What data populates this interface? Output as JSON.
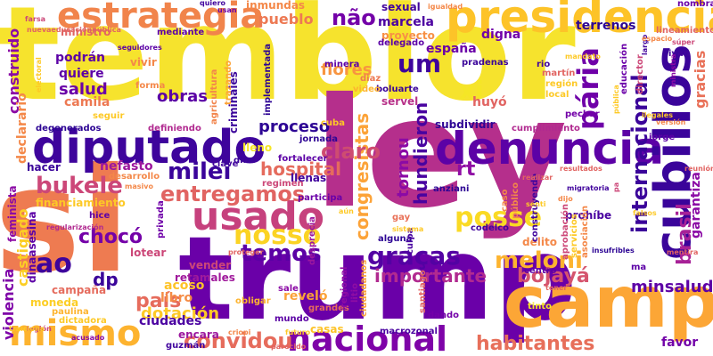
{
  "words": [
    {
      "text": "temblor",
      "color": "#f6e32d"
    },
    {
      "text": "ley",
      "color": "#b52f8c"
    },
    {
      "text": "trump",
      "color": "#6a00a8"
    },
    {
      "text": "si",
      "color": "#ee7b51"
    },
    {
      "text": "campo",
      "color": "#fca636"
    },
    {
      "text": "denuncia",
      "color": "#5c01a6"
    },
    {
      "text": "diputado",
      "color": "#3e049c"
    },
    {
      "text": "presidencial",
      "color": "#fdc328"
    },
    {
      "text": "estrategia",
      "color": "#f1844b"
    },
    {
      "text": "usado",
      "color": "#c6417d"
    },
    {
      "text": "cubillos",
      "color": "#3a049a"
    },
    {
      "text": "nacional",
      "color": "#7e03a8"
    },
    {
      "text": "mismo",
      "color": "#fdb32f"
    },
    {
      "text": "internacional",
      "color": "#3b049a"
    },
    {
      "text": "pária",
      "color": "#6f00a8"
    },
    {
      "text": "nosso",
      "color": "#fbd324"
    },
    {
      "text": "posse",
      "color": "#fada24"
    },
    {
      "text": "meloni",
      "color": "#fdb42f"
    },
    {
      "text": "graças",
      "color": "#5302a3"
    },
    {
      "text": "habitantes",
      "color": "#e76f5a"
    },
    {
      "text": "convidou",
      "color": "#e66c5c"
    },
    {
      "text": "bukele",
      "color": "#cc4778"
    },
    {
      "text": "milei",
      "color": "#3a049a"
    },
    {
      "text": "entregamos",
      "color": "#e16462"
    },
    {
      "text": "temos",
      "color": "#5b01a5"
    },
    {
      "text": "ao",
      "color": "#3e049c"
    },
    {
      "text": "país",
      "color": "#e66c5c"
    },
    {
      "text": "um",
      "color": "#3e049c"
    },
    {
      "text": "xi",
      "color": "#f5e626"
    },
    {
      "text": "não",
      "color": "#7301a8"
    },
    {
      "text": "brasil",
      "color": "#a72197"
    },
    {
      "text": "bojayá",
      "color": "#d5546e"
    },
    {
      "text": "congresistas",
      "color": "#fca338"
    },
    {
      "text": "chocó",
      "color": "#7401a8"
    },
    {
      "text": "claro",
      "color": "#ce4c71"
    },
    {
      "text": "pueblo",
      "color": "#ed7953"
    },
    {
      "text": "salud",
      "color": "#6a00a8"
    },
    {
      "text": "obras",
      "color": "#5b01a5"
    },
    {
      "text": "minsalud",
      "color": "#5d01a6"
    },
    {
      "text": "importante",
      "color": "#b12a90"
    },
    {
      "text": "rt",
      "color": "#8f0da4"
    },
    {
      "text": "hundieron",
      "color": "#4903a0"
    },
    {
      "text": "hospital",
      "color": "#e56b5d"
    },
    {
      "text": "dotación",
      "color": "#fdc926"
    },
    {
      "text": "proceso",
      "color": "#2d0594"
    },
    {
      "text": "tornou",
      "color": "#8b0aa5"
    },
    {
      "text": "dp",
      "color": "#3a049a"
    },
    {
      "text": "construido",
      "color": "#8b0aa5"
    },
    {
      "text": "violencia",
      "color": "#7e03a8"
    },
    {
      "text": "castigado",
      "color": "#fcce25"
    },
    {
      "text": "flores",
      "color": "#f89540"
    },
    {
      "text": "gracias",
      "color": "#e97158"
    },
    {
      "text": "garantiza",
      "color": "#8b0aa5"
    },
    {
      "text": "inmundas",
      "color": "#f48849"
    },
    {
      "text": "libro",
      "color": "#f58c46"
    },
    {
      "text": "marcela",
      "color": "#4c02a1"
    },
    {
      "text": "españa",
      "color": "#6a00a8"
    },
    {
      "text": "ciudades",
      "color": "#4b03a1"
    },
    {
      "text": "acoso",
      "color": "#fdc328"
    },
    {
      "text": "reveló",
      "color": "#fba238"
    },
    {
      "text": "favor",
      "color": "#7201a8"
    },
    {
      "text": "digna",
      "color": "#7201a8"
    },
    {
      "text": "sexual",
      "color": "#41049d"
    },
    {
      "text": "terrenos",
      "color": "#2c0594"
    },
    {
      "text": "proyecto",
      "color": "#f79044"
    },
    {
      "text": "ministro",
      "color": "#e16462"
    },
    {
      "text": "podrán",
      "color": "#5c01a6"
    },
    {
      "text": "quiere",
      "color": "#5c01a6"
    },
    {
      "text": "vivir",
      "color": "#f48849"
    },
    {
      "text": "camila",
      "color": "#ed7953"
    },
    {
      "text": "hacer",
      "color": "#3a049a"
    },
    {
      "text": "nefasto",
      "color": "#9c179e"
    },
    {
      "text": "financiamiento",
      "color": "#fdc926"
    },
    {
      "text": "moneda",
      "color": "#fcce25"
    },
    {
      "text": "campaña",
      "color": "#e56b5d"
    },
    {
      "text": "lotear",
      "color": "#cc4778"
    },
    {
      "text": "vender",
      "color": "#cc4778"
    },
    {
      "text": "retamales",
      "color": "#a01a9c"
    },
    {
      "text": "encara",
      "color": "#9c179e"
    },
    {
      "text": "subdividir",
      "color": "#2d0594"
    },
    {
      "text": "jornada",
      "color": "#2d0594"
    },
    {
      "text": "llenas",
      "color": "#41049d"
    },
    {
      "text": "delito",
      "color": "#f48849"
    },
    {
      "text": "prohíbe",
      "color": "#4903a0"
    },
    {
      "text": "codelco",
      "color": "#41049d"
    },
    {
      "text": "privada",
      "color": "#6f00a8"
    },
    {
      "text": "lleno",
      "color": "#f6e626"
    },
    {
      "text": "dina",
      "color": "#3a049a"
    },
    {
      "text": "dando",
      "color": "#7301a8"
    },
    {
      "text": "casas",
      "color": "#fdc328"
    },
    {
      "text": "grandes",
      "color": "#e56b5d"
    },
    {
      "text": "mundo",
      "color": "#5b01a5"
    },
    {
      "text": "obligar",
      "color": "#fdb42f"
    },
    {
      "text": "regional",
      "color": "#8f0da4"
    },
    {
      "text": "litio",
      "color": "#8f0da4"
    },
    {
      "text": "macrozonal",
      "color": "#4903a0"
    },
    {
      "text": "santiago",
      "color": "#e16462"
    },
    {
      "text": "centro",
      "color": "#5d01a6"
    },
    {
      "text": "tinto",
      "color": "#f5e626"
    },
    {
      "text": "pechar",
      "color": "#7301a8"
    },
    {
      "text": "servel",
      "color": "#b83289"
    },
    {
      "text": "huyó",
      "color": "#e16462"
    },
    {
      "text": "boluarte",
      "color": "#3a049a"
    },
    {
      "text": "pradenas",
      "color": "#3a049a"
    },
    {
      "text": "región",
      "color": "#fdc926"
    },
    {
      "text": "local",
      "color": "#fdc926"
    },
    {
      "text": "rio",
      "color": "#41049d"
    },
    {
      "text": "martín",
      "color": "#e16462"
    },
    {
      "text": "ivan",
      "color": "#41049d"
    },
    {
      "text": "jorge",
      "color": "#5c01a6"
    },
    {
      "text": "cumplimiento",
      "color": "#b12a90"
    },
    {
      "text": "delegado",
      "color": "#5c01a6"
    },
    {
      "text": "minera",
      "color": "#5c01a6"
    },
    {
      "text": "diaz",
      "color": "#ed7953"
    },
    {
      "text": "video",
      "color": "#fdb42f"
    },
    {
      "text": "criminales",
      "color": "#3a049a"
    },
    {
      "text": "agricultura",
      "color": "#f2844b"
    },
    {
      "text": "definiendo",
      "color": "#b12a90"
    },
    {
      "text": "mediante",
      "color": "#5c01a6"
    },
    {
      "text": "forma",
      "color": "#f48849"
    },
    {
      "text": "seguir",
      "color": "#fdc926"
    },
    {
      "text": "trazando",
      "color": "#fca338"
    },
    {
      "text": "degenerados",
      "color": "#2d0594"
    },
    {
      "text": "implementada",
      "color": "#2d0594"
    },
    {
      "text": "cuba",
      "color": "#fdc926"
    },
    {
      "text": "caso",
      "color": "#f48849"
    },
    {
      "text": "público",
      "color": "#f48849"
    },
    {
      "text": "alguna",
      "color": "#2d0594"
    },
    {
      "text": "culpa",
      "color": "#4903a0"
    },
    {
      "text": "ciudadanos",
      "color": "#fba238"
    },
    {
      "text": "desprecia",
      "color": "#9c179e"
    },
    {
      "text": "regimen",
      "color": "#cc4778"
    },
    {
      "text": "fortalecer",
      "color": "#5c01a6"
    },
    {
      "text": "participa",
      "color": "#6a00a8"
    },
    {
      "text": "clave",
      "color": "#41049d"
    },
    {
      "text": "desarrollo",
      "color": "#f48849"
    },
    {
      "text": "hice",
      "color": "#5d01a6"
    },
    {
      "text": "paulina",
      "color": "#fdb42f"
    },
    {
      "text": "dictadora",
      "color": "#fdc926"
    },
    {
      "text": "guzmán",
      "color": "#41049d"
    },
    {
      "text": "feminista",
      "color": "#8b0aa5"
    },
    {
      "text": "declarario",
      "color": "#f48849"
    },
    {
      "text": "dinaasesina",
      "color": "#5c01a6"
    },
    {
      "text": "sale",
      "color": "#8b0aa5"
    },
    {
      "text": "anziani",
      "color": "#2d0594"
    },
    {
      "text": "construyendo",
      "color": "#41049d"
    },
    {
      "text": "ma",
      "color": "#5c01a6"
    },
    {
      "text": "aprobación",
      "color": "#cc4778"
    },
    {
      "text": "gay",
      "color": "#e97158"
    },
    {
      "text": "servicios",
      "color": "#fdc926"
    },
    {
      "text": "asociación",
      "color": "#f48849"
    },
    {
      "text": "educación",
      "color": "#6a00a8"
    },
    {
      "text": "lineamientos",
      "color": "#e16462"
    },
    {
      "text": "nombra",
      "color": "#6a00a8"
    },
    {
      "text": "director",
      "color": "#cc4778"
    },
    {
      "text": "ministra",
      "color": "#8b0aa5"
    },
    {
      "text": "pública",
      "color": "#fdc926"
    },
    {
      "text": "mandato",
      "color": "#fdc926"
    },
    {
      "text": "largo",
      "color": "#41049d"
    },
    {
      "text": "quiero",
      "color": "#41049d"
    },
    {
      "text": "farsa",
      "color": "#cc4778"
    },
    {
      "text": "nuevaeducaciónpública",
      "color": "#e16462"
    },
    {
      "text": "seguidores",
      "color": "#5c01a6"
    },
    {
      "text": "espacio",
      "color": "#f48849"
    },
    {
      "text": "electoral",
      "color": "#fdc926"
    },
    {
      "text": "masivo",
      "color": "#f48849"
    },
    {
      "text": "regularización",
      "color": "#b12a90"
    },
    {
      "text": "legión",
      "color": "#cc4778"
    },
    {
      "text": "acusado",
      "color": "#8b0aa5"
    },
    {
      "text": "traiciona",
      "color": "#fdc926"
    },
    {
      "text": "criopi",
      "color": "#f48849"
    },
    {
      "text": "futuro",
      "color": "#fdc926"
    },
    {
      "text": "parecido",
      "color": "#e16462"
    },
    {
      "text": "mentira",
      "color": "#e16462"
    },
    {
      "text": "resultados",
      "color": "#e16462"
    },
    {
      "text": "insufribles",
      "color": "#2d0594"
    },
    {
      "text": "migratoria",
      "color": "#41049d"
    },
    {
      "text": "falsos",
      "color": "#fdc926"
    },
    {
      "text": "ilegales",
      "color": "#fdc926"
    },
    {
      "text": "versión",
      "color": "#f48849"
    },
    {
      "text": "reunión",
      "color": "#e16462"
    },
    {
      "text": "súper",
      "color": "#cc4778"
    },
    {
      "text": "dijo",
      "color": "#f48849"
    },
    {
      "text": "senti",
      "color": "#fdc926"
    },
    {
      "text": "proteger",
      "color": "#e16462"
    },
    {
      "text": "realizar",
      "color": "#e16462"
    },
    {
      "text": "pa",
      "color": "#cc4778"
    },
    {
      "text": "aún",
      "color": "#fdc926"
    },
    {
      "text": "igualdad",
      "color": "#f48849"
    },
    {
      "text": "tener",
      "color": "#e16462"
    },
    {
      "text": "usan",
      "color": "#6a00a8"
    },
    {
      "text": "sistema",
      "color": "#fdc926"
    }
  ]
}
